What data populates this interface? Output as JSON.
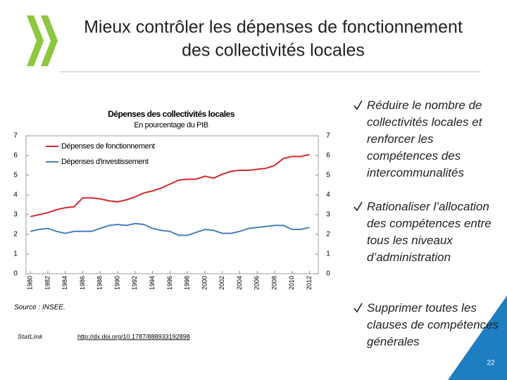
{
  "title": [
    "Mieux contrôler les dépenses de fonctionnement",
    "des collectivités locales"
  ],
  "chart_data": {
    "type": "line",
    "title": "Dépenses des collectivités locales",
    "subtitle": "En pourcentage du PIB",
    "x": [
      1980,
      1981,
      1982,
      1983,
      1984,
      1985,
      1986,
      1987,
      1988,
      1989,
      1990,
      1991,
      1992,
      1993,
      1994,
      1995,
      1996,
      1997,
      1998,
      1999,
      2000,
      2001,
      2002,
      2003,
      2004,
      2005,
      2006,
      2007,
      2008,
      2009,
      2010,
      2011,
      2012
    ],
    "xlim": [
      1979.5,
      2013
    ],
    "xticks": [
      1980,
      1982,
      1984,
      1986,
      1988,
      1990,
      1992,
      1994,
      1996,
      1998,
      2000,
      2002,
      2004,
      2006,
      2008,
      2010,
      2012
    ],
    "ylim": [
      0,
      7
    ],
    "yticks": [
      0,
      1,
      2,
      3,
      4,
      5,
      6,
      7
    ],
    "y2lim": [
      0,
      7
    ],
    "y2ticks": [
      0,
      1,
      2,
      3,
      4,
      5,
      6,
      7
    ],
    "series": [
      {
        "name": "Dépenses de fonctionnement",
        "color": "#d42a2f",
        "values": [
          2.9,
          3.0,
          3.1,
          3.25,
          3.35,
          3.4,
          3.85,
          3.85,
          3.8,
          3.7,
          3.65,
          3.75,
          3.9,
          4.1,
          4.2,
          4.35,
          4.55,
          4.75,
          4.8,
          4.8,
          4.95,
          4.85,
          5.05,
          5.2,
          5.25,
          5.25,
          5.3,
          5.35,
          5.5,
          5.85,
          5.95,
          5.95,
          6.05
        ]
      },
      {
        "name": "Dépenses d'investissement",
        "color": "#4a7ebb",
        "values": [
          2.15,
          2.25,
          2.3,
          2.15,
          2.05,
          2.15,
          2.15,
          2.15,
          2.3,
          2.45,
          2.5,
          2.45,
          2.55,
          2.5,
          2.3,
          2.2,
          2.15,
          1.95,
          1.95,
          2.1,
          2.25,
          2.2,
          2.05,
          2.05,
          2.15,
          2.3,
          2.35,
          2.4,
          2.45,
          2.45,
          2.25,
          2.25,
          2.35
        ]
      }
    ],
    "source": "Source : INSEE.",
    "statlink_logo": "StatLink",
    "link": "http://dx.doi.org/10.1787/888933192898"
  },
  "bullets": [
    "Réduire le nombre de collectivités locales et renforcer les compétences des intercommunalités",
    "Rationaliser l’allocation des compétences entre tous les niveaux d’administration",
    "Supprimer toutes les clauses de compétences générales"
  ],
  "page_number": "22"
}
